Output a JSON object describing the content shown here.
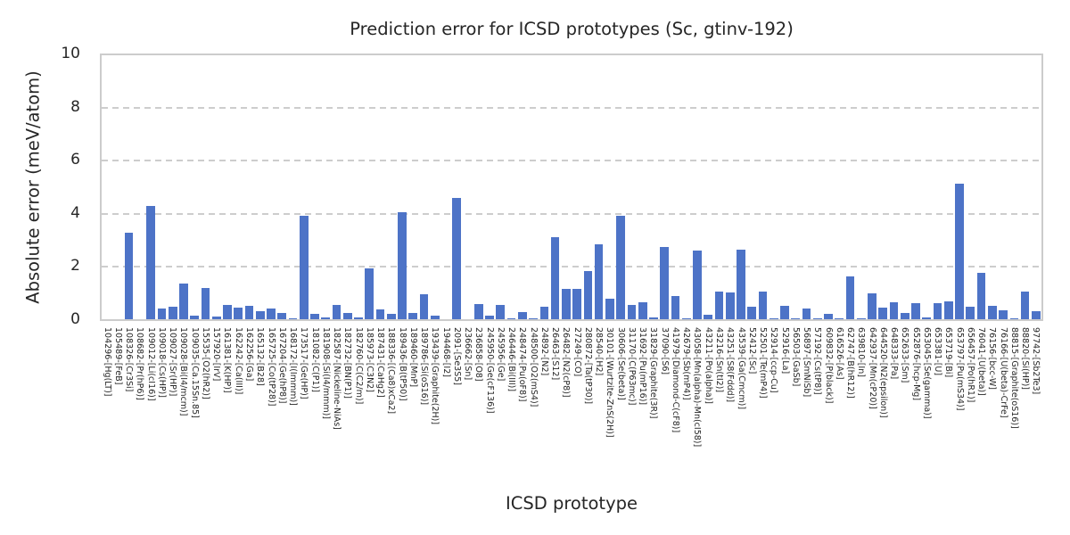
{
  "chart_data": {
    "type": "bar",
    "title": "Prediction error for ICSD prototypes (Sc, gtinv-192)",
    "xlabel": "ICSD prototype",
    "ylabel": "Absolute error (meV/atom)",
    "ylim": [
      0,
      10
    ],
    "yticks": [
      0,
      2,
      4,
      6,
      8,
      10
    ],
    "grid": "dashed-horizontal",
    "legend": "none",
    "bar_color": "#4d73c7",
    "grid_color": "#cdcdcd",
    "spine_color": "#cccccc",
    "text_color": "#262626",
    "categories": [
      "104296-[Hg(LT)]",
      "105489-[FeB]",
      "108326-[Cr3Si]",
      "108682-[Pr(hP6)]",
      "109012-[Li(cI16)]",
      "109018-[Cs(HP)]",
      "109027-[Sr(HP)]",
      "109028-[Bi(I4/mcm)]",
      "109035-[Ca.15Sn.85]",
      "15535-[O2(hR2)]",
      "157920-[IrV]",
      "161381-[K(HP)]",
      "162242-[Ca(III)]",
      "162256-[Ga]",
      "165132-[B28]",
      "165725-[Co(tP28)]",
      "167204-[Ge(hP8)]",
      "168172-[I(Immm)]",
      "173517-[Ge(HP)]",
      "181082-[C(P1)]",
      "181908-[Si(I4/mmm)]",
      "182587-[Nickeline-NiAs]",
      "182732-[BN(P1)]",
      "182760-[C(C2/m)]",
      "185973-[C3N2]",
      "187431-[CaHg2]",
      "188336-[(Ca8)xCa2]",
      "189436-[B(tP50)]",
      "189460-[MnP]",
      "189786-[Si(oS16)]",
      "193439-[Graphite(2H)]",
      "194468-[I2]",
      "2091-[Se3S5]",
      "236662-[Sn]",
      "236858-[O8]",
      "245950-[Ge(cF136)]",
      "245956-[Ge]",
      "246446-[Bi(III)]",
      "248474-[Pu(oF8)]",
      "248500-[O2(mS4)]",
      "24892-[N2]",
      "26463-[S12]",
      "26482-[N2(cP8)]",
      "27249-[CO]",
      "280872-[Ta(tP30)]",
      "28540-[H2]",
      "30101-[Wurtzite-ZnS(2H)]",
      "30606-[Se(beta)]",
      "31170-[C(P63mc)]",
      "31692-[Pu(mP16)]",
      "31829-[Graphite(3R)]",
      "37090-[S6]",
      "41979-[Diamond-C(cF8)]",
      "42679-[Sb(mP4)]",
      "43058-[Mn(alpha)-Mn(cI58)]",
      "43211-[Po(alpha)]",
      "43216-[Sn(tI2)]",
      "43251-[S8(Fddd)]",
      "43539-[Ga(Cmcm)]",
      "52412-[Sc]",
      "52501-[Te(mP4)]",
      "52914-[ccp-Cu]",
      "52916-[La]",
      "56503-[GaSb]",
      "56897-[SmNiSb]",
      "57192-[Cs(tP8)]",
      "609832-[P(black)]",
      "616526-[As]",
      "62747-[B(hR12)]",
      "639810-[In]",
      "642937-[Mn(cP20)]",
      "644520-[N2(epsilon)]",
      "648333-[Pa]",
      "652633-[Sm]",
      "652876-[hcp-Mg]",
      "653045-[Se(gamma)]",
      "653381-[U]",
      "653719-[Bi]",
      "653797-[Pu(mS34)]",
      "656457-[Po(hR1)]",
      "76041-[U(beta)]",
      "76156-[bcc-W]",
      "76166-[U(beta)-CrFe]",
      "88815-[Graphite(oS16)]",
      "88820-[Si(HP)]",
      "97742-[Sb2Te3]"
    ],
    "values": [
      0,
      0,
      3.25,
      0,
      4.28,
      0.42,
      0.47,
      1.33,
      0.14,
      1.18,
      0.11,
      0.55,
      0.43,
      0.49,
      0.32,
      0.39,
      0.22,
      0.05,
      3.88,
      0.19,
      0.08,
      0.55,
      0.23,
      0.08,
      1.92,
      0.38,
      0.19,
      4.02,
      0.25,
      0.94,
      0.12,
      0,
      4.58,
      0,
      0.58,
      0.15,
      0.55,
      0.05,
      0.28,
      0.03,
      0.47,
      3.1,
      1.15,
      1.15,
      1.8,
      2.83,
      0.77,
      3.9,
      0.55,
      0.65,
      0.08,
      2.73,
      0.86,
      0.04,
      2.58,
      0.17,
      1.04,
      1.01,
      2.62,
      0.46,
      1.04,
      0.04,
      0.52,
      0.02,
      0.42,
      0.04,
      0.2,
      0.02,
      1.62,
      0.03,
      0.99,
      0.43,
      0.65,
      0.25,
      0.59,
      0.08,
      0.59,
      0.68,
      5.1,
      0.46,
      1.76,
      0.5,
      0.34,
      0.04,
      1.05,
      0.32
    ]
  }
}
